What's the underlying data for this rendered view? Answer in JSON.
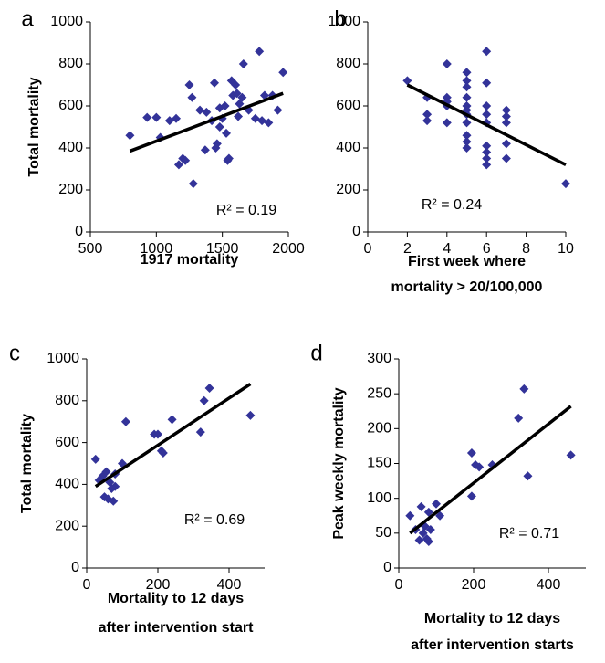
{
  "chart_data": [
    {
      "type": "scatter",
      "panel_label": "a",
      "ylabel": "Total mortality",
      "xlabel": [
        "1917 mortality"
      ],
      "xlim": [
        500,
        2000
      ],
      "xticks": [
        500,
        1000,
        1500,
        2000
      ],
      "ylim": [
        0,
        1000
      ],
      "yticks": [
        0,
        200,
        400,
        600,
        800,
        1000
      ],
      "x": [
        800,
        930,
        1000,
        1030,
        1100,
        1150,
        1170,
        1200,
        1220,
        1250,
        1270,
        1280,
        1330,
        1370,
        1380,
        1420,
        1440,
        1450,
        1460,
        1480,
        1480,
        1500,
        1520,
        1530,
        1540,
        1550,
        1570,
        1580,
        1600,
        1610,
        1620,
        1630,
        1650,
        1660,
        1700,
        1750,
        1780,
        1800,
        1820,
        1850,
        1880,
        1920,
        1960
      ],
      "series": [
        {
          "color": "#333399",
          "values": [
            460,
            545,
            545,
            450,
            530,
            540,
            320,
            350,
            340,
            700,
            640,
            230,
            580,
            390,
            570,
            530,
            710,
            400,
            420,
            500,
            590,
            540,
            600,
            470,
            340,
            350,
            720,
            650,
            700,
            660,
            550,
            610,
            640,
            800,
            580,
            540,
            860,
            530,
            650,
            520,
            650,
            580,
            760
          ]
        }
      ],
      "trendline": {
        "x": [
          800,
          1960
        ],
        "y": [
          385,
          660
        ]
      },
      "annotation": "R² = 0.19"
    },
    {
      "type": "scatter",
      "panel_label": "b",
      "xlabel": [
        "First week where",
        "mortality > 20/100,000"
      ],
      "xlim": [
        0,
        10
      ],
      "xticks": [
        0,
        2,
        4,
        6,
        8,
        10
      ],
      "ylim": [
        0,
        1000
      ],
      "yticks": [
        0,
        200,
        400,
        600,
        800,
        1000
      ],
      "x": [
        2,
        3,
        3,
        3,
        4,
        4,
        4,
        4,
        4,
        5,
        5,
        5,
        5,
        5,
        5,
        5,
        5,
        5,
        5,
        5,
        6,
        6,
        6,
        6,
        6,
        6,
        6,
        6,
        6,
        7,
        7,
        7,
        7,
        7,
        10
      ],
      "series": [
        {
          "color": "#333399",
          "values": [
            720,
            560,
            640,
            530,
            800,
            640,
            600,
            520,
            620,
            760,
            720,
            690,
            640,
            580,
            560,
            520,
            460,
            400,
            430,
            600,
            860,
            710,
            560,
            520,
            410,
            380,
            350,
            320,
            600,
            580,
            550,
            520,
            420,
            350,
            230
          ]
        }
      ],
      "trendline": {
        "x": [
          2,
          10
        ],
        "y": [
          700,
          320
        ]
      },
      "annotation": "R² = 0.24"
    },
    {
      "type": "scatter",
      "panel_label": "c",
      "ylabel": "Total mortality",
      "xlabel": [
        "Mortality to 12 days",
        "after intervention start"
      ],
      "xlim": [
        0,
        500
      ],
      "xticks": [
        0,
        200,
        400
      ],
      "ylim": [
        0,
        1000
      ],
      "yticks": [
        0,
        200,
        400,
        600,
        800,
        1000
      ],
      "x": [
        25,
        35,
        45,
        50,
        55,
        60,
        65,
        70,
        75,
        80,
        80,
        100,
        110,
        190,
        200,
        210,
        215,
        240,
        320,
        330,
        345,
        460
      ],
      "series": [
        {
          "color": "#333399",
          "values": [
            520,
            420,
            440,
            340,
            460,
            330,
            410,
            380,
            320,
            450,
            390,
            500,
            700,
            640,
            640,
            560,
            550,
            710,
            650,
            800,
            860,
            730
          ]
        }
      ],
      "trendline": {
        "x": [
          25,
          460
        ],
        "y": [
          390,
          880
        ]
      },
      "annotation": "R² = 0.69"
    },
    {
      "type": "scatter",
      "panel_label": "d",
      "ylabel": "Peak weekly mortality",
      "xlabel": [
        "Mortality to 12 days",
        "after intervention starts"
      ],
      "xlim": [
        0,
        500
      ],
      "xticks": [
        0,
        200,
        400
      ],
      "ylim": [
        0,
        300
      ],
      "yticks": [
        0,
        50,
        100,
        150,
        200,
        250,
        300
      ],
      "x": [
        30,
        45,
        55,
        60,
        65,
        70,
        75,
        80,
        80,
        85,
        100,
        110,
        195,
        195,
        205,
        215,
        250,
        320,
        335,
        345,
        460
      ],
      "series": [
        {
          "color": "#333399",
          "values": [
            75,
            55,
            40,
            88,
            50,
            60,
            42,
            80,
            38,
            55,
            92,
            75,
            165,
            103,
            148,
            145,
            148,
            215,
            257,
            132,
            162
          ]
        }
      ],
      "trendline": {
        "x": [
          30,
          460
        ],
        "y": [
          50,
          232
        ]
      },
      "annotation": "R² = 0.71"
    }
  ]
}
